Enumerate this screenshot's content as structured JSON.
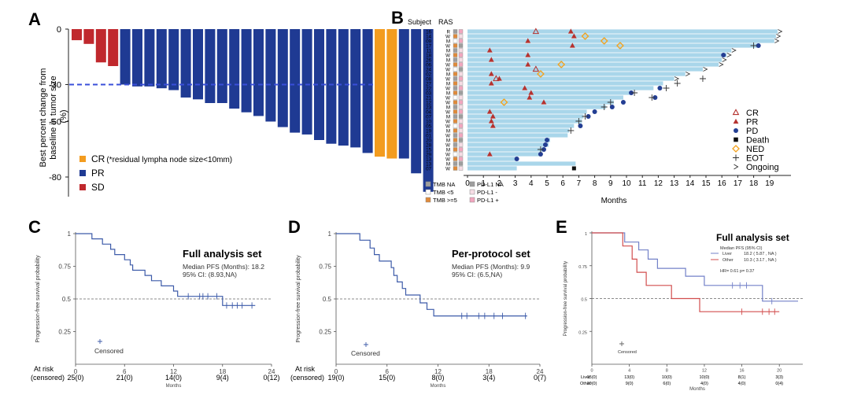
{
  "chart_data": [
    {
      "type": "bar",
      "panel": "A",
      "ylabel": "Best percent change from baseline in tumor size (%)",
      "yticks": [
        0,
        -30,
        -50,
        -80
      ],
      "ylim": [
        -90,
        0
      ],
      "reference_line": -30,
      "values": [
        -6,
        -8,
        -18,
        -20,
        -30,
        -31,
        -31,
        -32,
        -33,
        -37,
        -38,
        -40,
        -40,
        -43,
        -45,
        -47,
        -50,
        -53,
        -56,
        -57,
        -60,
        -62,
        -63,
        -64,
        -67,
        -69,
        -70,
        -70,
        -78,
        -88
      ],
      "groups": [
        "SD",
        "SD",
        "SD",
        "SD",
        "PR",
        "PR",
        "PR",
        "PR",
        "PR",
        "PR",
        "PR",
        "PR",
        "PR",
        "PR",
        "PR",
        "PR",
        "PR",
        "PR",
        "PR",
        "PR",
        "PR",
        "PR",
        "PR",
        "PR",
        "PR",
        "CR",
        "CR",
        "PR",
        "PR",
        "PR"
      ],
      "legend": [
        {
          "key": "CR",
          "label": "CR",
          "note": "(*residual lympha node size<10mm)",
          "color": "#F39C1F"
        },
        {
          "key": "PR",
          "label": "PR",
          "note": "",
          "color": "#1F3A93"
        },
        {
          "key": "SD",
          "label": "SD",
          "note": "",
          "color": "#C0282D"
        }
      ]
    },
    {
      "type": "swimmer",
      "panel": "B",
      "header_subject": "Subject",
      "header_ras": "RAS",
      "xlabel": "Months",
      "xticks": [
        0,
        1,
        2,
        3,
        4,
        5,
        6,
        7,
        8,
        9,
        10,
        11,
        12,
        13,
        14,
        15,
        16,
        17,
        18,
        19
      ],
      "xlim": [
        0,
        19.7
      ],
      "durations": [
        19.5,
        19.4,
        19.3,
        18.2,
        16.6,
        16.3,
        16.0,
        15.8,
        14.8,
        13.7,
        13.0,
        12.3,
        11.7,
        10.2,
        9.8,
        9.2,
        8.7,
        7.5,
        7.3,
        7.2,
        6.7,
        6.4,
        6.3,
        5.2,
        5.1,
        4.7,
        4.5,
        3.1,
        6.8,
        3.1
      ],
      "subjects": [
        "16",
        "14",
        "09",
        "17",
        "11",
        "18",
        "26",
        "06",
        "24",
        "02",
        "08",
        "27",
        "22",
        "03",
        "21",
        "12",
        "23",
        "04",
        "07",
        "10",
        "05",
        "19",
        "01",
        "20",
        "28",
        "15",
        "29",
        "13",
        "13",
        "07"
      ],
      "ras": [
        "R",
        "W",
        "M",
        "W",
        "M",
        "W",
        "M",
        "W",
        "W",
        "M",
        "W",
        "M",
        "W",
        "M",
        "W",
        "W",
        "M",
        "W",
        "M",
        "W",
        "W",
        "M",
        "W",
        "M",
        "W",
        "M",
        "W",
        "W",
        "M",
        "W"
      ],
      "events": {
        "CR": [
          [
            0,
            4.3
          ],
          [
            8,
            4.3
          ],
          [
            10,
            1.8
          ]
        ],
        "PR": [
          [
            0,
            6.5
          ],
          [
            1,
            6.7
          ],
          [
            2,
            3.8
          ],
          [
            3,
            6.6
          ],
          [
            4,
            1.4
          ],
          [
            5,
            3.8
          ],
          [
            6,
            1.5
          ],
          [
            7,
            3.8
          ],
          [
            9,
            1.5
          ],
          [
            10,
            2.0
          ],
          [
            11,
            1.5
          ],
          [
            12,
            3.6
          ],
          [
            13,
            4.0
          ],
          [
            14,
            3.9
          ],
          [
            15,
            4.8
          ],
          [
            17,
            1.4
          ],
          [
            18,
            1.6
          ],
          [
            19,
            1.5
          ],
          [
            20,
            1.6
          ],
          [
            26,
            1.4
          ]
        ],
        "PD": [
          [
            3,
            18.3
          ],
          [
            5,
            16.1
          ],
          [
            12,
            12.1
          ],
          [
            13,
            10.3
          ],
          [
            14,
            11.8
          ],
          [
            15,
            9.8
          ],
          [
            16,
            9.1
          ],
          [
            17,
            8.0
          ],
          [
            18,
            7.6
          ],
          [
            20,
            7.1
          ],
          [
            23,
            5.0
          ],
          [
            24,
            4.9
          ],
          [
            25,
            4.8
          ],
          [
            26,
            4.6
          ],
          [
            27,
            3.1
          ]
        ],
        "Death": [
          [
            29,
            6.7
          ]
        ],
        "NED": [
          [
            1,
            7.4
          ],
          [
            2,
            8.6
          ],
          [
            3,
            9.6
          ],
          [
            7,
            5.9
          ],
          [
            9,
            4.6
          ],
          [
            15,
            2.3
          ]
        ],
        "EOT": [
          [
            3,
            18.0
          ],
          [
            10,
            14.8
          ],
          [
            11,
            13.2
          ],
          [
            12,
            12.5
          ],
          [
            13,
            10.5
          ],
          [
            14,
            11.6
          ],
          [
            15,
            9.0
          ],
          [
            16,
            8.6
          ],
          [
            18,
            7.4
          ],
          [
            19,
            7.0
          ],
          [
            21,
            6.5
          ],
          [
            25,
            4.6
          ]
        ],
        "Ongoing": [
          [
            0,
            19.5
          ],
          [
            1,
            19.4
          ],
          [
            2,
            19.3
          ],
          [
            4,
            16.6
          ],
          [
            5,
            16.3
          ],
          [
            6,
            16.0
          ],
          [
            7,
            15.8
          ],
          [
            8,
            14.8
          ],
          [
            9,
            13.7
          ],
          [
            10,
            13.0
          ]
        ]
      },
      "legend_markers": [
        {
          "key": "CR",
          "label": "CR"
        },
        {
          "key": "PR",
          "label": "PR"
        },
        {
          "key": "PD",
          "label": "PD"
        },
        {
          "key": "Death",
          "label": "Death"
        },
        {
          "key": "NED",
          "label": "NED"
        },
        {
          "key": "EOT",
          "label": "EOT"
        },
        {
          "key": "Ongoing",
          "label": "Ongoing"
        }
      ],
      "legend_biomarker": [
        {
          "label": "TMB NA",
          "color": "#9E9E9E"
        },
        {
          "label": "TMB <5",
          "color": "#ffffff"
        },
        {
          "label": "TMB >=5",
          "color": "#E08A3A"
        },
        {
          "label": "PD-L1 NA",
          "color": "#9E9E9E"
        },
        {
          "label": "PD-L1 -",
          "color": "#F6DDE5"
        },
        {
          "label": "PD-L1 +",
          "color": "#F2A7BF"
        }
      ],
      "colors": {
        "bar": "#A9D6EA",
        "triangle": "#B5322F",
        "dot": "#233E93",
        "ned": "#F4A21C",
        "death": "#111111",
        "eot": "#333333"
      }
    },
    {
      "type": "line",
      "panel": "C",
      "title": "Full analysis set",
      "ylabel": "Progression-free survival probability",
      "xlabel": "Months",
      "xticks": [
        0,
        6,
        12,
        18,
        24
      ],
      "yticks": [
        "1",
        "0.75",
        "0.5",
        "0.25"
      ],
      "xlim": [
        0,
        24
      ],
      "ylim": [
        0,
        1
      ],
      "median_text": "Median PFS (Months): 18.2",
      "ci_text": "95% CI: (8.93,NA)",
      "censored_label": "Censored",
      "at_risk_label": [
        "At risk",
        "(censored)"
      ],
      "at_risk": [
        "25(0)",
        "21(0)",
        "14(0)",
        "9(4)",
        "0(12)"
      ],
      "steps": [
        [
          0,
          1
        ],
        [
          2,
          1
        ],
        [
          2,
          0.96
        ],
        [
          3.3,
          0.96
        ],
        [
          3.3,
          0.92
        ],
        [
          4.3,
          0.92
        ],
        [
          4.3,
          0.88
        ],
        [
          4.8,
          0.88
        ],
        [
          4.8,
          0.84
        ],
        [
          6,
          0.84
        ],
        [
          6,
          0.8
        ],
        [
          6.7,
          0.8
        ],
        [
          6.7,
          0.76
        ],
        [
          7,
          0.76
        ],
        [
          7,
          0.72
        ],
        [
          8.5,
          0.72
        ],
        [
          8.5,
          0.68
        ],
        [
          9.3,
          0.68
        ],
        [
          9.3,
          0.64
        ],
        [
          10.5,
          0.64
        ],
        [
          10.5,
          0.6
        ],
        [
          12,
          0.6
        ],
        [
          12,
          0.56
        ],
        [
          12.5,
          0.56
        ],
        [
          12.5,
          0.52
        ],
        [
          18,
          0.52
        ],
        [
          18,
          0.45
        ],
        [
          22,
          0.45
        ]
      ],
      "censor_points": [
        [
          13.8,
          0.52
        ],
        [
          15.2,
          0.52
        ],
        [
          15.6,
          0.52
        ],
        [
          16.2,
          0.52
        ],
        [
          17.3,
          0.52
        ],
        [
          18.5,
          0.45
        ],
        [
          19.2,
          0.45
        ],
        [
          19.8,
          0.45
        ],
        [
          20.4,
          0.45
        ],
        [
          21.6,
          0.45
        ]
      ],
      "color": "#3D5BA9"
    },
    {
      "type": "line",
      "panel": "D",
      "title": "Per-protocol set",
      "ylabel": "Progression-free survival probability",
      "xlabel": "Months",
      "xticks": [
        0,
        6,
        12,
        18,
        24
      ],
      "yticks": [
        "1",
        "0.75",
        "0.5",
        "0.25"
      ],
      "xlim": [
        0,
        24
      ],
      "ylim": [
        0,
        1
      ],
      "median_text": "Median PFS (Months): 9.9",
      "ci_text": "95% CI: (6.5,NA)",
      "censored_label": "Censored",
      "at_risk_label": [
        "At risk",
        "(censored)"
      ],
      "at_risk": [
        "19(0)",
        "15(0)",
        "8(0)",
        "3(4)",
        "0(7)"
      ],
      "steps": [
        [
          0,
          1
        ],
        [
          2.8,
          1
        ],
        [
          2.8,
          0.95
        ],
        [
          4,
          0.95
        ],
        [
          4,
          0.89
        ],
        [
          4.5,
          0.89
        ],
        [
          4.5,
          0.84
        ],
        [
          5.1,
          0.84
        ],
        [
          5.1,
          0.79
        ],
        [
          6.5,
          0.79
        ],
        [
          6.5,
          0.74
        ],
        [
          6.8,
          0.74
        ],
        [
          6.8,
          0.68
        ],
        [
          7.2,
          0.68
        ],
        [
          7.2,
          0.63
        ],
        [
          7.8,
          0.63
        ],
        [
          7.8,
          0.58
        ],
        [
          8.2,
          0.58
        ],
        [
          8.2,
          0.53
        ],
        [
          9.9,
          0.53
        ],
        [
          9.9,
          0.47
        ],
        [
          10.7,
          0.47
        ],
        [
          10.7,
          0.42
        ],
        [
          11.5,
          0.42
        ],
        [
          11.5,
          0.37
        ],
        [
          22.5,
          0.37
        ]
      ],
      "censor_points": [
        [
          14.8,
          0.37
        ],
        [
          15.4,
          0.37
        ],
        [
          16.8,
          0.37
        ],
        [
          17.5,
          0.37
        ],
        [
          18.6,
          0.37
        ],
        [
          19.6,
          0.37
        ],
        [
          22.3,
          0.37
        ]
      ],
      "color": "#3D5BA9"
    },
    {
      "type": "line",
      "panel": "E",
      "title": "Full analysis set",
      "ylabel": "Progression-free survival probability",
      "xlabel": "Months",
      "xticks": [
        0,
        4,
        8,
        12,
        16,
        20
      ],
      "yticks": [
        "1",
        "0.75",
        "0.5",
        "0.25"
      ],
      "xlim": [
        0,
        22.5
      ],
      "ylim": [
        0,
        1
      ],
      "median_header": "Median PFS   (95% CI)",
      "hr_text": "HR= 0.61  p= 0.37",
      "censored_label": "Censored",
      "risk_rows": [
        "Liver",
        "Other"
      ],
      "at_risk_liver": [
        "15(0)",
        "13(0)",
        "10(0)",
        "10(0)",
        "8(1)",
        "3(3)"
      ],
      "at_risk_other": [
        "10(0)",
        "9(0)",
        "6(0)",
        "4(0)",
        "4(0)",
        "0(4)"
      ],
      "series": [
        {
          "name": "Liver",
          "median": "18.2  ( 5.87 , NA )",
          "color": "#7381C8",
          "steps": [
            [
              0,
              1
            ],
            [
              3.5,
              1
            ],
            [
              3.5,
              0.93
            ],
            [
              5,
              0.93
            ],
            [
              5,
              0.87
            ],
            [
              6,
              0.87
            ],
            [
              6,
              0.8
            ],
            [
              7,
              0.8
            ],
            [
              7,
              0.73
            ],
            [
              10,
              0.73
            ],
            [
              10,
              0.67
            ],
            [
              12,
              0.67
            ],
            [
              12,
              0.6
            ],
            [
              18.2,
              0.6
            ],
            [
              18.2,
              0.48
            ],
            [
              22,
              0.48
            ]
          ],
          "censor_points": [
            [
              15,
              0.6
            ],
            [
              15.8,
              0.6
            ],
            [
              16.5,
              0.6
            ],
            [
              19.2,
              0.48
            ]
          ]
        },
        {
          "name": "Other",
          "median": "10.3  ( 3.17 , NA )",
          "color": "#D24E4E",
          "steps": [
            [
              0,
              1
            ],
            [
              3.3,
              1
            ],
            [
              3.3,
              0.9
            ],
            [
              4.3,
              0.9
            ],
            [
              4.3,
              0.8
            ],
            [
              4.8,
              0.8
            ],
            [
              4.8,
              0.7
            ],
            [
              5.8,
              0.7
            ],
            [
              5.8,
              0.6
            ],
            [
              8.5,
              0.6
            ],
            [
              8.5,
              0.5
            ],
            [
              11.5,
              0.5
            ],
            [
              11.5,
              0.4
            ],
            [
              20,
              0.4
            ]
          ],
          "censor_points": [
            [
              16,
              0.4
            ],
            [
              18.2,
              0.4
            ],
            [
              18.9,
              0.4
            ],
            [
              19.5,
              0.4
            ]
          ]
        }
      ]
    }
  ]
}
